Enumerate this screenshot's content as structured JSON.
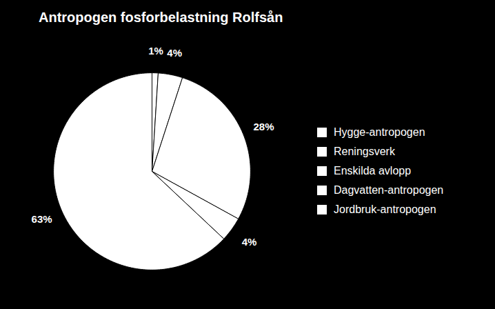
{
  "chart_data": {
    "type": "pie",
    "title": "Antropogen fosforbelastning Rolfsån",
    "categories": [
      "Hygge-antropogen",
      "Reningsverk",
      "Enskilda avlopp",
      "Dagvatten-antropogen",
      "Jordbruk-antropogen"
    ],
    "values": [
      1,
      4,
      28,
      4,
      63
    ],
    "value_labels": [
      "1%",
      "4%",
      "28%",
      "4%",
      "63%"
    ],
    "colors": [
      "#ffffff",
      "#ffffff",
      "#ffffff",
      "#ffffff",
      "#ffffff"
    ],
    "data_labels": true,
    "legend": "right"
  }
}
